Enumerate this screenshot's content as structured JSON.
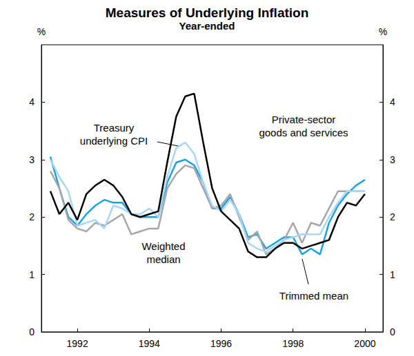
{
  "chart_data": {
    "type": "line",
    "title": "Measures of Underlying Inflation",
    "subtitle": "Year-ended",
    "ylabel": "%",
    "x": [
      1991.75,
      1992.0,
      1992.25,
      1992.5,
      1992.75,
      1993.0,
      1993.25,
      1993.5,
      1993.75,
      1994.0,
      1994.25,
      1994.5,
      1994.75,
      1995.0,
      1995.25,
      1995.5,
      1995.75,
      1996.0,
      1996.25,
      1996.5,
      1996.75,
      1997.0,
      1997.25,
      1997.5,
      1997.75,
      1998.0,
      1998.25,
      1998.5,
      1998.75,
      1999.0,
      1999.25,
      1999.5,
      1999.75,
      2000.0,
      2000.25,
      2000.5
    ],
    "series": [
      {
        "name": "Private-sector goods and services",
        "color": "#000000",
        "values": [
          2.45,
          2.05,
          2.25,
          1.95,
          2.4,
          2.55,
          2.65,
          2.55,
          2.35,
          2.05,
          2.0,
          2.05,
          2.1,
          2.95,
          3.75,
          4.1,
          4.15,
          3.3,
          2.5,
          2.1,
          1.95,
          1.8,
          1.4,
          1.3,
          1.3,
          1.45,
          1.55,
          1.55,
          1.45,
          1.5,
          1.55,
          1.6,
          2.0,
          2.25,
          2.2,
          2.4
        ]
      },
      {
        "name": "Treasury underlying CPI",
        "color": "#a9d6f5",
        "values": [
          3.0,
          2.7,
          2.45,
          1.85,
          1.9,
          1.95,
          1.8,
          2.2,
          2.15,
          2.05,
          2.05,
          2.15,
          2.0,
          2.7,
          3.2,
          3.3,
          3.1,
          2.6,
          2.2,
          2.1,
          2.3,
          2.05,
          1.55,
          1.45,
          1.4,
          1.5,
          1.6,
          1.65,
          1.7,
          1.7,
          1.7,
          2.0,
          2.25,
          2.45,
          2.45,
          2.45
        ]
      },
      {
        "name": "Weighted median",
        "color": "#a6a6a6",
        "values": [
          2.8,
          2.5,
          1.95,
          1.8,
          1.75,
          1.9,
          1.85,
          1.95,
          2.05,
          1.7,
          1.75,
          1.8,
          1.8,
          2.5,
          2.75,
          2.9,
          2.85,
          2.5,
          2.15,
          2.2,
          2.4,
          2.0,
          1.6,
          1.75,
          1.35,
          1.45,
          1.6,
          1.9,
          1.55,
          1.9,
          1.85,
          2.15,
          2.45,
          2.45,
          2.45,
          2.45
        ]
      },
      {
        "name": "Trimmed mean",
        "color": "#1ba1e2",
        "values": [
          3.05,
          2.5,
          2.0,
          1.85,
          2.05,
          2.2,
          2.3,
          2.25,
          2.25,
          2.05,
          2.0,
          2.0,
          2.0,
          2.6,
          2.95,
          3.0,
          2.9,
          2.6,
          2.15,
          2.15,
          2.35,
          2.05,
          1.65,
          1.7,
          1.45,
          1.55,
          1.65,
          1.65,
          1.35,
          1.45,
          1.35,
          1.9,
          2.2,
          2.4,
          2.55,
          2.65
        ]
      }
    ],
    "xlim": [
      1991.5,
      2001.0
    ],
    "xticks": [
      {
        "value": 1992.5,
        "label": "1992"
      },
      {
        "value": 1994.5,
        "label": "1994"
      },
      {
        "value": 1996.5,
        "label": "1996"
      },
      {
        "value": 1998.5,
        "label": "1998"
      },
      {
        "value": 2000.5,
        "label": "2000"
      }
    ],
    "ylim": [
      0,
      5
    ],
    "yticks": [
      0,
      1,
      2,
      3,
      4
    ],
    "grid": false
  }
}
